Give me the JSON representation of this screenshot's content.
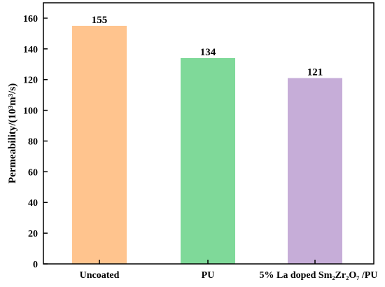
{
  "chart_data": {
    "type": "bar",
    "categories": [
      "Uncoated",
      "PU",
      "5% La doped Sm₂Zr₂O₇ /PU"
    ],
    "values": [
      155,
      134,
      121
    ],
    "data_labels": [
      "155",
      "134",
      "121"
    ],
    "ylabel": "Permeability/(10³m³/s)",
    "xlabel": "",
    "ylim": [
      0,
      170
    ],
    "yticks": [
      0,
      20,
      40,
      60,
      80,
      100,
      120,
      140,
      160
    ],
    "colors": [
      "#FFC48E",
      "#7FD999",
      "#C6ADD8"
    ],
    "grid": false,
    "legend": "none"
  }
}
